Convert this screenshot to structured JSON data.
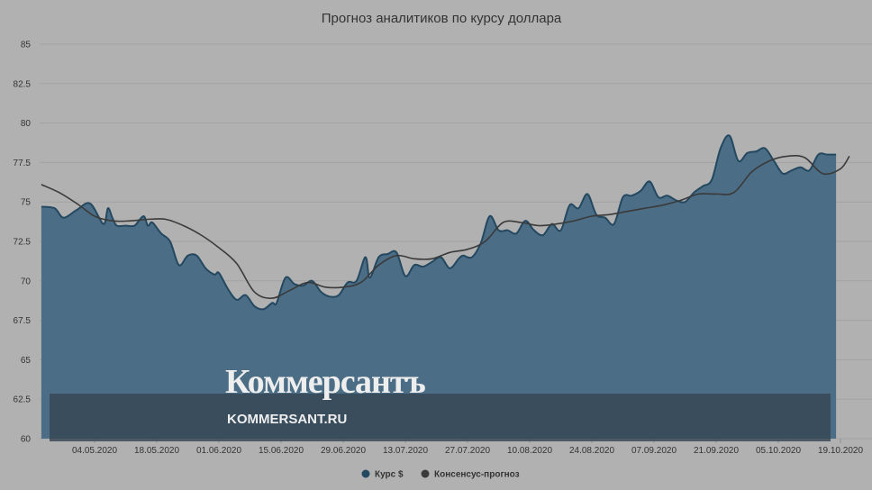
{
  "chart_data": {
    "type": "area",
    "title": "Прогноз аналитиков по курсу доллара",
    "xlabel": "",
    "ylabel": "",
    "ylim": [
      60,
      85
    ],
    "yticks": [
      "60",
      "62.5",
      "65",
      "67.5",
      "70",
      "72.5",
      "75",
      "77.5",
      "80",
      "82.5",
      "85"
    ],
    "xticks": [
      "04.05.2020",
      "18.05.2020",
      "01.06.2020",
      "15.06.2020",
      "29.06.2020",
      "13.07.2020",
      "27.07.2020",
      "10.08.2020",
      "24.08.2020",
      "07.09.2020",
      "21.09.2020",
      "05.10.2020",
      "19.10.2020"
    ],
    "grid": true,
    "legend_position": "bottom-center",
    "series": [
      {
        "name": "Курс $",
        "type": "area",
        "color": "#4b6e86",
        "x": [
          "2020-04-22",
          "2020-04-25",
          "2020-04-27",
          "2020-04-30",
          "2020-05-03",
          "2020-05-06",
          "2020-05-07",
          "2020-05-08",
          "2020-05-09",
          "2020-05-11",
          "2020-05-13",
          "2020-05-15",
          "2020-05-16",
          "2020-05-17",
          "2020-05-19",
          "2020-05-21",
          "2020-05-23",
          "2020-05-25",
          "2020-05-27",
          "2020-05-29",
          "2020-05-31",
          "2020-06-01",
          "2020-06-03",
          "2020-06-05",
          "2020-06-07",
          "2020-06-09",
          "2020-06-11",
          "2020-06-13",
          "2020-06-14",
          "2020-06-16",
          "2020-06-18",
          "2020-06-20",
          "2020-06-22",
          "2020-06-24",
          "2020-06-26",
          "2020-06-28",
          "2020-06-30",
          "2020-07-02",
          "2020-07-04",
          "2020-07-05",
          "2020-07-07",
          "2020-07-09",
          "2020-07-11",
          "2020-07-13",
          "2020-07-15",
          "2020-07-17",
          "2020-07-19",
          "2020-07-21",
          "2020-07-23",
          "2020-07-25",
          "2020-07-26",
          "2020-07-28",
          "2020-07-30",
          "2020-08-01",
          "2020-08-03",
          "2020-08-05",
          "2020-08-07",
          "2020-08-09",
          "2020-08-11",
          "2020-08-13",
          "2020-08-15",
          "2020-08-17",
          "2020-08-19",
          "2020-08-21",
          "2020-08-23",
          "2020-08-25",
          "2020-08-27",
          "2020-08-29",
          "2020-08-31",
          "2020-09-02",
          "2020-09-04",
          "2020-09-06",
          "2020-09-08",
          "2020-09-10",
          "2020-09-12",
          "2020-09-14",
          "2020-09-16",
          "2020-09-18",
          "2020-09-20",
          "2020-09-22",
          "2020-09-24",
          "2020-09-26",
          "2020-09-28",
          "2020-09-30",
          "2020-10-02",
          "2020-10-04",
          "2020-10-06",
          "2020-10-08",
          "2020-10-10",
          "2020-10-12",
          "2020-10-14",
          "2020-10-16",
          "2020-10-18"
        ],
        "values": [
          74.7,
          74.6,
          74.0,
          74.5,
          74.9,
          73.6,
          74.6,
          74.0,
          73.5,
          73.5,
          73.5,
          74.1,
          73.5,
          73.7,
          73.0,
          72.5,
          71.0,
          71.6,
          71.6,
          70.8,
          70.4,
          70.5,
          69.5,
          68.8,
          69.1,
          68.4,
          68.2,
          68.6,
          68.6,
          70.2,
          69.8,
          69.7,
          70.0,
          69.3,
          69.0,
          69.1,
          69.9,
          70.0,
          71.5,
          70.2,
          71.5,
          71.7,
          71.8,
          70.3,
          71.0,
          70.9,
          71.2,
          71.5,
          70.8,
          71.4,
          71.6,
          71.5,
          72.4,
          74.1,
          73.2,
          73.2,
          73.0,
          73.8,
          73.2,
          72.9,
          73.6,
          73.2,
          74.8,
          74.6,
          75.5,
          74.2,
          74.0,
          73.6,
          75.3,
          75.4,
          75.7,
          76.3,
          75.3,
          75.4,
          75.1,
          75.0,
          75.6,
          76.0,
          76.4,
          78.4,
          79.2,
          77.6,
          78.1,
          78.2,
          78.4,
          77.6,
          76.8,
          77.0,
          77.2,
          77.0,
          78.0,
          78.0,
          78.0
        ]
      },
      {
        "name": "Консенсус-прогноз",
        "type": "line",
        "color": "#3a3a3a",
        "x": [
          "2020-04-22",
          "2020-04-26",
          "2020-04-30",
          "2020-05-04",
          "2020-05-08",
          "2020-05-12",
          "2020-05-16",
          "2020-05-20",
          "2020-05-24",
          "2020-05-28",
          "2020-06-01",
          "2020-06-05",
          "2020-06-09",
          "2020-06-13",
          "2020-06-17",
          "2020-06-21",
          "2020-06-25",
          "2020-06-29",
          "2020-07-03",
          "2020-07-07",
          "2020-07-11",
          "2020-07-15",
          "2020-07-19",
          "2020-07-23",
          "2020-07-27",
          "2020-07-31",
          "2020-08-04",
          "2020-08-08",
          "2020-08-12",
          "2020-08-16",
          "2020-08-20",
          "2020-08-24",
          "2020-08-28",
          "2020-09-01",
          "2020-09-05",
          "2020-09-09",
          "2020-09-13",
          "2020-09-17",
          "2020-09-21",
          "2020-09-25",
          "2020-09-29",
          "2020-10-03",
          "2020-10-07",
          "2020-10-11",
          "2020-10-15",
          "2020-10-19",
          "2020-10-21"
        ],
        "values": [
          76.1,
          75.6,
          74.9,
          74.1,
          73.8,
          73.8,
          73.9,
          73.9,
          73.5,
          72.9,
          72.1,
          71.1,
          69.3,
          68.9,
          69.4,
          69.9,
          69.6,
          69.6,
          69.9,
          71.0,
          71.6,
          71.4,
          71.4,
          71.8,
          72.0,
          72.5,
          73.7,
          73.7,
          73.5,
          73.6,
          73.8,
          74.1,
          74.2,
          74.4,
          74.6,
          74.8,
          75.1,
          75.5,
          75.5,
          75.6,
          76.9,
          77.6,
          77.9,
          77.8,
          76.8,
          77.1,
          77.9
        ]
      }
    ]
  },
  "watermark": {
    "logo": "Коммерсантъ",
    "site": "KOMMERSANT.RU"
  }
}
